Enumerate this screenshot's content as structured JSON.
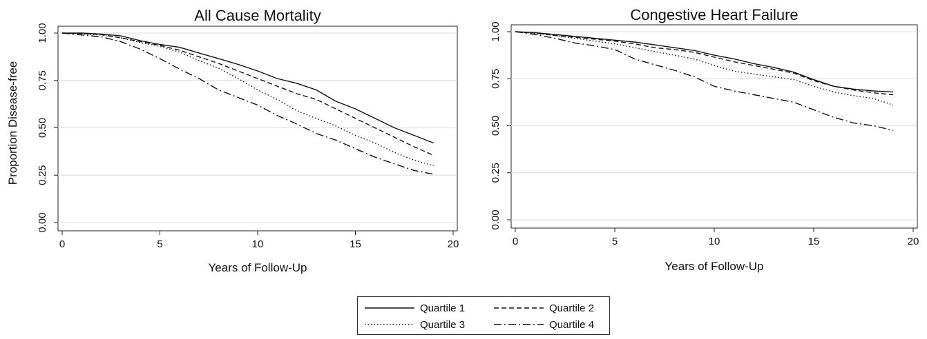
{
  "legend": [
    {
      "label": "Quartile 1",
      "dash": "solid"
    },
    {
      "label": "Quartile 2",
      "dash": "dash"
    },
    {
      "label": "Quartile 3",
      "dash": "dot"
    },
    {
      "label": "Quartile 4",
      "dash": "dashdot"
    }
  ],
  "chart_data": [
    {
      "type": "line",
      "title": "All Cause Mortality",
      "xlabel": "Years of Follow-Up",
      "ylabel": "Proportion Disease-free",
      "xlim": [
        0,
        20
      ],
      "ylim": [
        0,
        1
      ],
      "xticks": [
        0,
        5,
        10,
        15,
        20
      ],
      "yticks": [
        "0.00",
        "0.25",
        "0.50",
        "0.75",
        "1.00"
      ],
      "grid": "horizontal",
      "x": [
        0,
        1,
        2,
        3,
        4,
        5,
        6,
        7,
        8,
        9,
        10,
        11,
        12,
        13,
        14,
        15,
        16,
        17,
        18,
        19
      ],
      "series": [
        {
          "name": "Quartile 1",
          "dash": "solid",
          "values": [
            1.0,
            1.0,
            0.995,
            0.985,
            0.96,
            0.94,
            0.925,
            0.895,
            0.865,
            0.835,
            0.8,
            0.76,
            0.735,
            0.7,
            0.64,
            0.6,
            0.55,
            0.5,
            0.46,
            0.42
          ]
        },
        {
          "name": "Quartile 2",
          "dash": "dash",
          "values": [
            1.0,
            0.998,
            0.992,
            0.975,
            0.955,
            0.935,
            0.91,
            0.875,
            0.84,
            0.8,
            0.76,
            0.72,
            0.68,
            0.65,
            0.6,
            0.55,
            0.5,
            0.45,
            0.4,
            0.355
          ]
        },
        {
          "name": "Quartile 3",
          "dash": "dot",
          "values": [
            1.0,
            0.995,
            0.99,
            0.975,
            0.95,
            0.93,
            0.9,
            0.855,
            0.815,
            0.76,
            0.7,
            0.65,
            0.59,
            0.55,
            0.51,
            0.46,
            0.42,
            0.37,
            0.33,
            0.3
          ]
        },
        {
          "name": "Quartile 4",
          "dash": "dashdot",
          "values": [
            1.0,
            0.99,
            0.98,
            0.955,
            0.915,
            0.865,
            0.81,
            0.76,
            0.7,
            0.66,
            0.62,
            0.565,
            0.52,
            0.47,
            0.435,
            0.39,
            0.345,
            0.31,
            0.275,
            0.255
          ]
        }
      ]
    },
    {
      "type": "line",
      "title": "Congestive Heart Failure",
      "xlabel": "Years of Follow-Up",
      "ylabel": "",
      "xlim": [
        0,
        20
      ],
      "ylim": [
        0,
        1
      ],
      "xticks": [
        0,
        5,
        10,
        15,
        20
      ],
      "yticks": [
        "0.00",
        "0.25",
        "0.50",
        "0.75",
        "1.00"
      ],
      "grid": "horizontal",
      "x": [
        0,
        1,
        2,
        3,
        4,
        5,
        6,
        7,
        8,
        9,
        10,
        11,
        12,
        13,
        14,
        15,
        16,
        17,
        18,
        19
      ],
      "series": [
        {
          "name": "Quartile 1",
          "dash": "solid",
          "values": [
            1.0,
            0.995,
            0.985,
            0.975,
            0.965,
            0.955,
            0.945,
            0.93,
            0.915,
            0.9,
            0.875,
            0.855,
            0.83,
            0.81,
            0.785,
            0.745,
            0.71,
            0.695,
            0.685,
            0.68
          ]
        },
        {
          "name": "Quartile 2",
          "dash": "dash",
          "values": [
            1.0,
            0.993,
            0.98,
            0.97,
            0.96,
            0.95,
            0.935,
            0.915,
            0.905,
            0.89,
            0.865,
            0.84,
            0.82,
            0.8,
            0.78,
            0.74,
            0.71,
            0.69,
            0.675,
            0.665
          ]
        },
        {
          "name": "Quartile 3",
          "dash": "dot",
          "values": [
            1.0,
            0.99,
            0.98,
            0.965,
            0.95,
            0.935,
            0.915,
            0.895,
            0.875,
            0.855,
            0.82,
            0.79,
            0.775,
            0.76,
            0.745,
            0.71,
            0.68,
            0.66,
            0.645,
            0.61
          ]
        },
        {
          "name": "Quartile 4",
          "dash": "dashdot",
          "values": [
            1.0,
            0.985,
            0.965,
            0.94,
            0.925,
            0.905,
            0.855,
            0.825,
            0.795,
            0.76,
            0.71,
            0.685,
            0.665,
            0.645,
            0.625,
            0.585,
            0.545,
            0.515,
            0.5,
            0.475
          ]
        }
      ]
    }
  ]
}
